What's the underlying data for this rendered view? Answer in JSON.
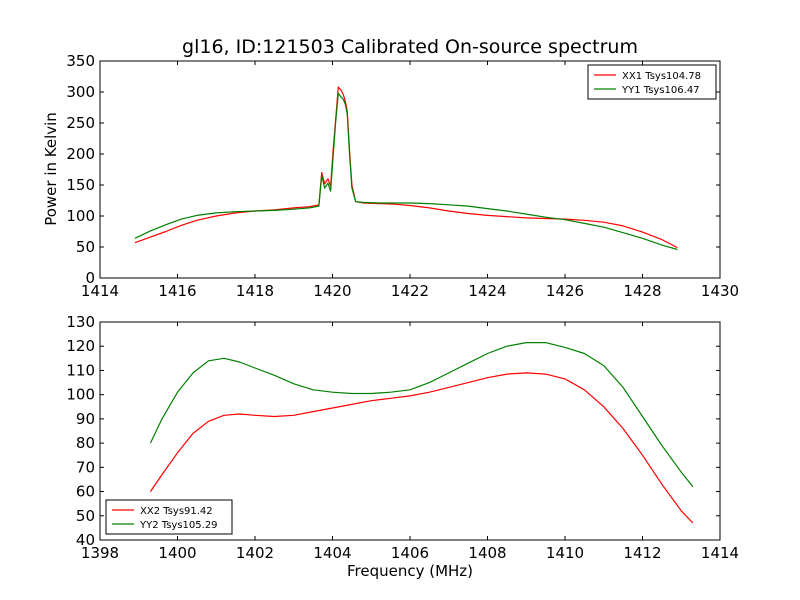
{
  "chart_data": [
    {
      "type": "line",
      "title": "gl16, ID:121503 Calibrated On-source spectrum",
      "xlabel": "",
      "ylabel": "Power in Kelvin",
      "xlim": [
        1414,
        1430
      ],
      "ylim": [
        0,
        350
      ],
      "xticks": [
        1414,
        1416,
        1418,
        1420,
        1422,
        1424,
        1426,
        1428,
        1430
      ],
      "yticks": [
        0,
        50,
        100,
        150,
        200,
        250,
        300,
        350
      ],
      "legend_position": "top-right",
      "grid": false,
      "series": [
        {
          "name": "XX1 Tsys104.78",
          "color": "#ff0000",
          "x": [
            1414.9,
            1415.3,
            1415.7,
            1416.1,
            1416.5,
            1417.0,
            1417.5,
            1418.0,
            1418.5,
            1419.0,
            1419.4,
            1419.65,
            1419.72,
            1419.8,
            1419.88,
            1419.95,
            1420.02,
            1420.08,
            1420.15,
            1420.22,
            1420.28,
            1420.33,
            1420.38,
            1420.44,
            1420.5,
            1420.6,
            1420.8,
            1421.2,
            1421.6,
            1422.0,
            1422.5,
            1423.0,
            1423.5,
            1424.0,
            1424.5,
            1425.0,
            1425.5,
            1426.0,
            1426.5,
            1427.0,
            1427.5,
            1428.0,
            1428.5,
            1428.9
          ],
          "y": [
            57,
            66,
            75,
            85,
            93,
            100,
            105,
            108,
            110,
            113,
            115,
            118,
            170,
            152,
            160,
            148,
            210,
            255,
            308,
            303,
            296,
            285,
            270,
            205,
            150,
            123,
            121,
            120,
            119,
            117,
            113,
            108,
            104,
            101,
            99,
            97,
            96,
            95,
            93,
            90,
            84,
            74,
            62,
            49
          ]
        },
        {
          "name": "YY1 Tsys106.47",
          "color": "#008000",
          "x": [
            1414.9,
            1415.3,
            1415.7,
            1416.1,
            1416.5,
            1417.0,
            1417.5,
            1418.0,
            1418.5,
            1419.0,
            1419.4,
            1419.65,
            1419.72,
            1419.8,
            1419.88,
            1419.95,
            1420.02,
            1420.08,
            1420.15,
            1420.22,
            1420.28,
            1420.33,
            1420.38,
            1420.44,
            1420.5,
            1420.6,
            1420.8,
            1421.2,
            1421.6,
            1422.0,
            1422.5,
            1423.0,
            1423.5,
            1424.0,
            1424.5,
            1425.0,
            1425.5,
            1426.0,
            1426.5,
            1427.0,
            1427.5,
            1428.0,
            1428.5,
            1428.9
          ],
          "y": [
            64,
            76,
            86,
            95,
            101,
            105,
            107,
            108,
            109,
            111,
            113,
            116,
            165,
            145,
            153,
            140,
            200,
            250,
            298,
            292,
            288,
            280,
            265,
            198,
            145,
            123,
            122,
            121,
            121,
            121,
            120,
            118,
            116,
            112,
            108,
            103,
            98,
            94,
            88,
            82,
            73,
            64,
            53,
            46
          ]
        }
      ]
    },
    {
      "type": "line",
      "title": "",
      "xlabel": "Frequency (MHz)",
      "ylabel": "",
      "xlim": [
        1398,
        1414
      ],
      "ylim": [
        40,
        130
      ],
      "xticks": [
        1398,
        1400,
        1402,
        1404,
        1406,
        1408,
        1410,
        1412,
        1414
      ],
      "yticks": [
        40,
        50,
        60,
        70,
        80,
        90,
        100,
        110,
        120,
        130
      ],
      "legend_position": "bottom-left",
      "grid": false,
      "series": [
        {
          "name": "XX2 Tsys91.42",
          "color": "#ff0000",
          "x": [
            1399.3,
            1399.6,
            1400.0,
            1400.4,
            1400.8,
            1401.2,
            1401.6,
            1402.0,
            1402.5,
            1403.0,
            1403.5,
            1404.0,
            1404.5,
            1405.0,
            1405.5,
            1406.0,
            1406.5,
            1407.0,
            1407.5,
            1408.0,
            1408.5,
            1409.0,
            1409.5,
            1410.0,
            1410.5,
            1411.0,
            1411.5,
            1412.0,
            1412.5,
            1413.0,
            1413.3
          ],
          "y": [
            60,
            67,
            76,
            84,
            89,
            91.5,
            92,
            91.5,
            91,
            91.5,
            93,
            94.5,
            96,
            97.5,
            98.5,
            99.5,
            101,
            103,
            105,
            107,
            108.5,
            109,
            108.5,
            106.5,
            102,
            95,
            86,
            75,
            63,
            52,
            47
          ]
        },
        {
          "name": "YY2 Tsys105.29",
          "color": "#008000",
          "x": [
            1399.3,
            1399.6,
            1400.0,
            1400.4,
            1400.8,
            1401.2,
            1401.6,
            1402.0,
            1402.5,
            1403.0,
            1403.5,
            1404.0,
            1404.5,
            1405.0,
            1405.5,
            1406.0,
            1406.5,
            1407.0,
            1407.5,
            1408.0,
            1408.5,
            1409.0,
            1409.5,
            1410.0,
            1410.5,
            1411.0,
            1411.5,
            1412.0,
            1412.5,
            1413.0,
            1413.3
          ],
          "y": [
            80,
            90,
            101,
            109,
            114,
            115,
            113.5,
            111,
            108,
            104.5,
            102,
            101,
            100.5,
            100.5,
            101,
            102,
            105,
            109,
            113,
            117,
            120,
            121.5,
            121.5,
            119.5,
            117,
            112,
            103,
            91,
            79,
            68,
            62
          ]
        }
      ]
    }
  ]
}
